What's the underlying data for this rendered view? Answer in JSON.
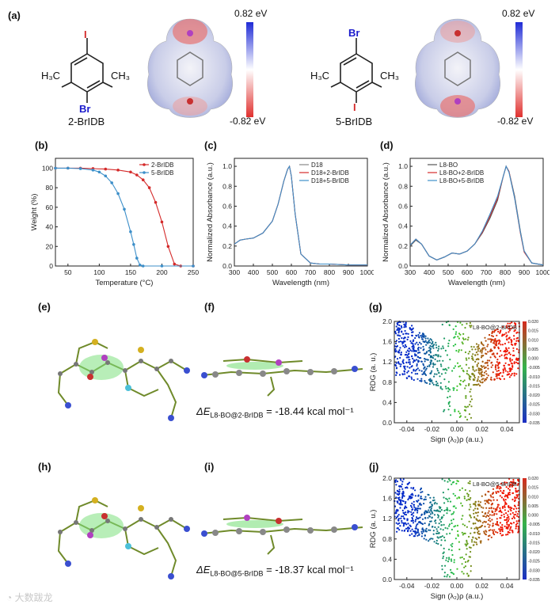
{
  "panel_labels": {
    "a": "(a)",
    "b": "(b)",
    "c": "(c)",
    "d": "(d)",
    "e": "(e)",
    "f": "(f)",
    "g": "(g)",
    "h": "(h)",
    "i": "(i)",
    "j": "(j)"
  },
  "molecules": {
    "left": {
      "name": "2-BrIDB",
      "atom_top": "I",
      "atom_bottom": "Br",
      "methyl_left": "H₃C",
      "methyl_right": "CH₃"
    },
    "right": {
      "name": "5-BrIDB",
      "atom_top": "Br",
      "atom_bottom": "I",
      "methyl_left": "H₃C",
      "methyl_right": "CH₃"
    }
  },
  "esp_scale": {
    "max": "0.82 eV",
    "min": "-0.82 eV",
    "color_pos": "#1f2bd6",
    "color_neg": "#e0302e"
  },
  "energies": {
    "f": {
      "prefix": "ΔE",
      "sub": "L8-BO@2-BrIDB",
      "value": " = -18.44 kcal mol⁻¹"
    },
    "i": {
      "prefix": "ΔE",
      "sub": "L8-BO@5-BrIDB",
      "value": " = -18.37 kcal mol⁻¹"
    }
  },
  "watermark": "大数跋龙",
  "chart_data": [
    {
      "id": "b",
      "type": "line",
      "xlabel": "Temperature (°C)",
      "ylabel": "Weight (%)",
      "xlim": [
        30,
        250
      ],
      "ylim": [
        0,
        110
      ],
      "xticks": [
        50,
        100,
        150,
        200,
        250
      ],
      "yticks": [
        0,
        20,
        40,
        60,
        80,
        100
      ],
      "legend": "top-right",
      "series": [
        {
          "name": "2-BrIDB",
          "color": "#d42a2a",
          "x": [
            30,
            50,
            70,
            90,
            110,
            130,
            150,
            160,
            170,
            180,
            190,
            200,
            210,
            220,
            230,
            250
          ],
          "y": [
            100,
            100,
            100,
            99.5,
            99,
            98,
            96,
            93,
            88,
            80,
            65,
            45,
            20,
            2,
            0,
            0
          ]
        },
        {
          "name": "5-BrIDB",
          "color": "#3d8fc9",
          "x": [
            30,
            50,
            70,
            90,
            100,
            110,
            120,
            130,
            140,
            150,
            155,
            160,
            165,
            170,
            200,
            250
          ],
          "y": [
            100,
            100,
            99.5,
            98,
            96,
            92,
            85,
            74,
            58,
            35,
            22,
            8,
            1,
            0,
            0,
            0
          ]
        }
      ]
    },
    {
      "id": "c",
      "type": "line",
      "xlabel": "Wavelength (nm)",
      "ylabel": "Normalized Absorbance (a.u.)",
      "xlim": [
        300,
        1000
      ],
      "ylim": [
        0,
        1.08
      ],
      "xticks": [
        300,
        400,
        500,
        600,
        700,
        800,
        900,
        1000
      ],
      "yticks": [
        0.0,
        0.2,
        0.4,
        0.6,
        0.8,
        1.0
      ],
      "legend": "top-right",
      "series": [
        {
          "name": "D18",
          "color": "#888888",
          "x": [
            300,
            330,
            360,
            400,
            450,
            500,
            530,
            560,
            580,
            590,
            600,
            620,
            650,
            700,
            750,
            800,
            900,
            1000
          ],
          "y": [
            0.22,
            0.26,
            0.27,
            0.28,
            0.33,
            0.45,
            0.62,
            0.85,
            0.97,
            1.0,
            0.9,
            0.52,
            0.12,
            0.03,
            0.02,
            0.02,
            0.01,
            0.01
          ]
        },
        {
          "name": "D18+2-BrIDB",
          "color": "#d42a2a",
          "x": [
            300,
            330,
            360,
            400,
            450,
            500,
            530,
            560,
            580,
            590,
            600,
            620,
            650,
            700,
            750,
            800,
            900,
            1000
          ],
          "y": [
            0.22,
            0.26,
            0.27,
            0.28,
            0.33,
            0.45,
            0.62,
            0.85,
            0.97,
            1.0,
            0.9,
            0.52,
            0.12,
            0.03,
            0.02,
            0.02,
            0.01,
            0.01
          ]
        },
        {
          "name": "D18+5-BrIDB",
          "color": "#3d8fc9",
          "x": [
            300,
            330,
            360,
            400,
            450,
            500,
            530,
            560,
            580,
            590,
            600,
            620,
            650,
            700,
            750,
            800,
            900,
            1000
          ],
          "y": [
            0.22,
            0.26,
            0.27,
            0.28,
            0.33,
            0.45,
            0.62,
            0.85,
            0.97,
            1.0,
            0.9,
            0.52,
            0.12,
            0.03,
            0.02,
            0.02,
            0.01,
            0.01
          ]
        }
      ]
    },
    {
      "id": "d",
      "type": "line",
      "xlabel": "Wavelength (nm)",
      "ylabel": "Normalized Absorbance (a.u.)",
      "xlim": [
        300,
        1000
      ],
      "ylim": [
        0,
        1.08
      ],
      "xticks": [
        300,
        400,
        500,
        600,
        700,
        800,
        900,
        1000
      ],
      "yticks": [
        0.0,
        0.2,
        0.4,
        0.6,
        0.8,
        1.0
      ],
      "legend": "top-left",
      "series": [
        {
          "name": "L8-BO",
          "color": "#555555",
          "x": [
            300,
            330,
            360,
            400,
            440,
            480,
            520,
            560,
            600,
            640,
            680,
            720,
            760,
            790,
            805,
            820,
            850,
            880,
            900,
            940,
            1000
          ],
          "y": [
            0.2,
            0.26,
            0.22,
            0.1,
            0.06,
            0.09,
            0.13,
            0.12,
            0.15,
            0.22,
            0.33,
            0.48,
            0.66,
            0.9,
            1.0,
            0.95,
            0.7,
            0.35,
            0.15,
            0.03,
            0.01
          ]
        },
        {
          "name": "L8-BO+2-BrIDB",
          "color": "#d42a2a",
          "x": [
            300,
            330,
            360,
            400,
            440,
            480,
            520,
            560,
            600,
            640,
            680,
            720,
            760,
            790,
            805,
            820,
            850,
            880,
            900,
            940,
            1000
          ],
          "y": [
            0.21,
            0.27,
            0.22,
            0.1,
            0.06,
            0.09,
            0.13,
            0.12,
            0.15,
            0.22,
            0.34,
            0.5,
            0.68,
            0.9,
            1.0,
            0.95,
            0.68,
            0.33,
            0.14,
            0.03,
            0.01
          ]
        },
        {
          "name": "L8-BO+5-BrIDB",
          "color": "#3d8fc9",
          "x": [
            300,
            330,
            360,
            400,
            440,
            480,
            520,
            560,
            600,
            640,
            680,
            720,
            760,
            790,
            805,
            820,
            850,
            880,
            900,
            940,
            1000
          ],
          "y": [
            0.21,
            0.27,
            0.22,
            0.1,
            0.06,
            0.09,
            0.13,
            0.12,
            0.15,
            0.22,
            0.35,
            0.52,
            0.7,
            0.9,
            1.0,
            0.94,
            0.68,
            0.34,
            0.15,
            0.03,
            0.01
          ]
        }
      ]
    },
    {
      "id": "g",
      "type": "scatter",
      "xlabel": "Sign (λ₂)ρ (a.u.)",
      "ylabel": "RDG (a. u.)",
      "xlim": [
        -0.05,
        0.05
      ],
      "ylim": [
        0,
        2.0
      ],
      "xticks": [
        -0.04,
        -0.02,
        0.0,
        0.02,
        0.04
      ],
      "yticks": [
        0.0,
        0.4,
        0.8,
        1.2,
        1.6,
        2.0
      ],
      "xtick_labels": [
        "-0.04",
        "-0.02",
        "0.00",
        "0.02",
        "0.04"
      ],
      "ytick_labels": [
        "0.0",
        "0.4",
        "0.8",
        "1.2",
        "1.6",
        "2.0"
      ],
      "legend_text": "L8-BO@2-BrIDB",
      "colorbar": [
        "0.020",
        "0.015",
        "0.010",
        "0.005",
        "0.000",
        "-0.005",
        "-0.010",
        "-0.015",
        "-0.020",
        "-0.025",
        "-0.030",
        "-0.035"
      ]
    },
    {
      "id": "j",
      "type": "scatter",
      "xlabel": "Sign (λ₂)ρ (a.u.)",
      "ylabel": "RDG (a. u.)",
      "xlim": [
        -0.05,
        0.05
      ],
      "ylim": [
        0,
        2.0
      ],
      "xticks": [
        -0.04,
        -0.02,
        0.0,
        0.02,
        0.04
      ],
      "yticks": [
        0.0,
        0.4,
        0.8,
        1.2,
        1.6,
        2.0
      ],
      "xtick_labels": [
        "-0.04",
        "-0.02",
        "0.00",
        "0.02",
        "0.04"
      ],
      "ytick_labels": [
        "0.0",
        "0.4",
        "0.8",
        "1.2",
        "1.6",
        "2.0"
      ],
      "legend_text": "L8-BO@5-BrIDB",
      "colorbar": [
        "0.020",
        "0.015",
        "0.010",
        "0.005",
        "0.000",
        "-0.005",
        "-0.010",
        "-0.015",
        "-0.020",
        "-0.025",
        "-0.030",
        "-0.035"
      ]
    }
  ]
}
